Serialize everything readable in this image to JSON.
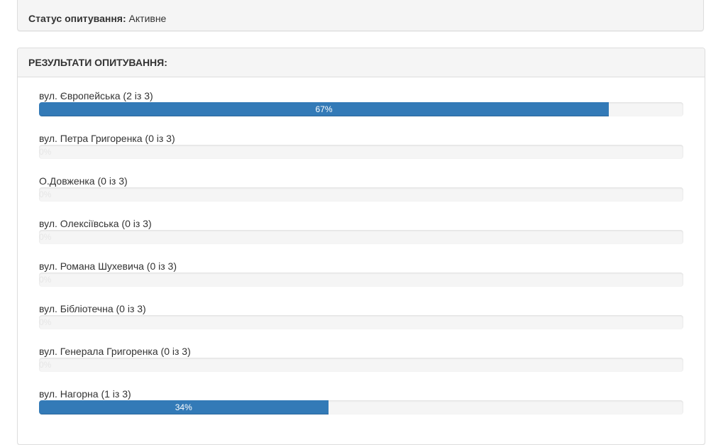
{
  "status": {
    "label": "Статус опитування:",
    "value": "Активне"
  },
  "results": {
    "title": "РЕЗУЛЬТАТИ ОПИТУВАННЯ:",
    "options": [
      {
        "label": "вул. Європейська (2 із 3)",
        "percent": 67,
        "percent_text": "67%"
      },
      {
        "label": "вул. Петра Григоренка (0 із 3)",
        "percent": 0,
        "percent_text": "0%"
      },
      {
        "label": "О.Довженка (0 із 3)",
        "percent": 0,
        "percent_text": "0%"
      },
      {
        "label": "вул. Олексіївська (0 із 3)",
        "percent": 0,
        "percent_text": "0%"
      },
      {
        "label": "вул. Романа Шухевича (0 із 3)",
        "percent": 0,
        "percent_text": "0%"
      },
      {
        "label": "вул. Бібліотечна (0 із 3)",
        "percent": 0,
        "percent_text": "0%"
      },
      {
        "label": "вул. Генерала Григоренка (0 із 3)",
        "percent": 0,
        "percent_text": "0%"
      },
      {
        "label": "вул. Нагорна (1 із 3)",
        "percent": 34,
        "percent_text": "34%"
      }
    ]
  },
  "colors": {
    "bar": "#337ab7",
    "track": "#f5f5f5"
  }
}
